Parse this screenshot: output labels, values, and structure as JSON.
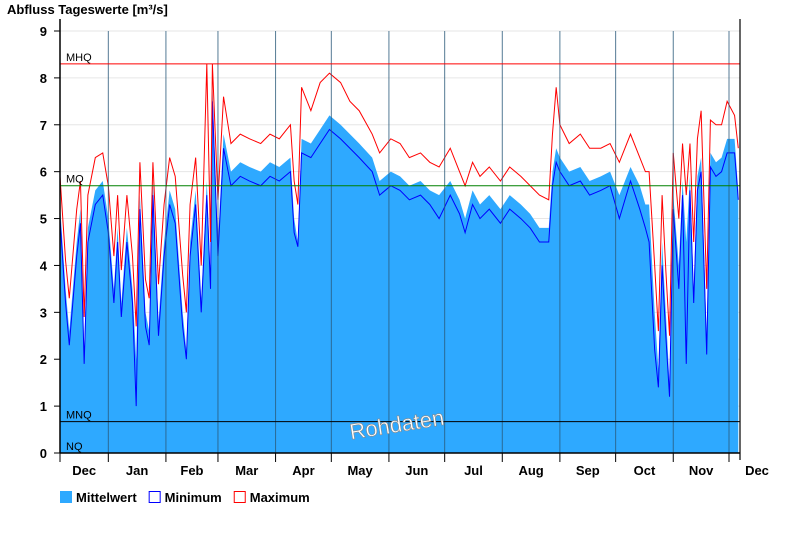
{
  "chart_data": {
    "type": "area",
    "title": "Abfluss Tageswerte [m³/s]",
    "ylabel": "Abfluss Tageswerte [m³/s]",
    "xlabel": "",
    "ylim": [
      0,
      9
    ],
    "yticks": [
      "0",
      "1",
      "2",
      "3",
      "4",
      "5",
      "6",
      "7",
      "8",
      "9"
    ],
    "xlim_days": [
      5,
      371
    ],
    "months": [
      {
        "label": "Dec",
        "start": 0
      },
      {
        "label": "Jan",
        "start": 31
      },
      {
        "label": "Feb",
        "start": 62
      },
      {
        "label": "Mar",
        "start": 90
      },
      {
        "label": "Apr",
        "start": 121
      },
      {
        "label": "May",
        "start": 151
      },
      {
        "label": "Jun",
        "start": 182
      },
      {
        "label": "Jul",
        "start": 212
      },
      {
        "label": "Aug",
        "start": 243
      },
      {
        "label": "Sep",
        "start": 274
      },
      {
        "label": "Oct",
        "start": 304
      },
      {
        "label": "Nov",
        "start": 335
      },
      {
        "label": "Dec",
        "start": 365
      }
    ],
    "reference_lines": [
      {
        "label": "MHQ",
        "value": 8.3,
        "color": "#ff0000"
      },
      {
        "label": "MQ",
        "value": 5.7,
        "color": "#008000"
      },
      {
        "label": "MNQ",
        "value": 0.67,
        "color": "#000000"
      },
      {
        "label": "NQ",
        "value": 0.0,
        "color": "#000000"
      }
    ],
    "watermark": "Rohdaten",
    "days": [
      5,
      8,
      10,
      14,
      16,
      18,
      20,
      24,
      28,
      31,
      34,
      36,
      38,
      41,
      44,
      46,
      48,
      51,
      53,
      55,
      58,
      61,
      64,
      67,
      71,
      73,
      75,
      78,
      81,
      84,
      86,
      87,
      90,
      93,
      97,
      102,
      107,
      113,
      118,
      123,
      129,
      131,
      133,
      135,
      140,
      145,
      150,
      156,
      161,
      166,
      173,
      177,
      183,
      188,
      193,
      199,
      204,
      209,
      215,
      220,
      223,
      227,
      231,
      236,
      242,
      247,
      253,
      258,
      263,
      268,
      270,
      272,
      274,
      279,
      285,
      290,
      296,
      301,
      306,
      312,
      317,
      320,
      322,
      325,
      327,
      329,
      331,
      333,
      335,
      338,
      340,
      342,
      344,
      346,
      348,
      350,
      353,
      355,
      358,
      361,
      364,
      368,
      370
    ],
    "series": [
      {
        "name": "Mittelwert",
        "color": "#2ea9ff",
        "values": [
          5.3,
          3.5,
          2.6,
          4.5,
          5.2,
          2.2,
          4.8,
          5.6,
          5.8,
          5.0,
          3.5,
          4.8,
          3.2,
          4.8,
          3.5,
          2.0,
          5.5,
          3.0,
          2.6,
          5.8,
          2.8,
          4.5,
          5.6,
          5.2,
          3.0,
          2.2,
          4.5,
          5.6,
          3.3,
          5.8,
          3.8,
          7.8,
          4.5,
          6.8,
          6.0,
          6.2,
          6.1,
          6.0,
          6.2,
          6.1,
          6.3,
          5.0,
          4.5,
          6.7,
          6.6,
          6.9,
          7.2,
          7.0,
          6.8,
          6.6,
          6.3,
          5.8,
          6.0,
          5.9,
          5.7,
          5.8,
          5.6,
          5.5,
          5.8,
          5.4,
          5.0,
          5.6,
          5.3,
          5.5,
          5.2,
          5.5,
          5.3,
          5.1,
          4.8,
          4.8,
          6.0,
          6.5,
          6.3,
          6.0,
          6.1,
          5.8,
          5.9,
          6.0,
          5.5,
          6.1,
          5.7,
          5.3,
          5.3,
          3.0,
          1.8,
          4.5,
          3.0,
          1.5,
          5.5,
          4.0,
          5.8,
          4.5,
          5.9,
          3.5,
          5.9,
          6.3,
          2.5,
          6.4,
          6.2,
          6.3,
          6.7,
          6.7,
          5.6
        ]
      },
      {
        "name": "Minimum",
        "color": "#0000ff",
        "values": [
          5.0,
          3.2,
          2.3,
          4.2,
          4.9,
          1.9,
          4.5,
          5.3,
          5.5,
          4.7,
          3.2,
          4.5,
          2.9,
          4.5,
          3.2,
          1.0,
          5.2,
          2.7,
          2.3,
          5.5,
          2.5,
          4.2,
          5.3,
          4.9,
          2.7,
          2.0,
          4.2,
          5.3,
          3.0,
          5.5,
          3.5,
          7.5,
          4.2,
          6.5,
          5.7,
          5.9,
          5.8,
          5.7,
          5.9,
          5.8,
          6.0,
          4.7,
          4.4,
          6.4,
          6.3,
          6.6,
          6.9,
          6.7,
          6.5,
          6.3,
          6.0,
          5.5,
          5.7,
          5.6,
          5.4,
          5.5,
          5.3,
          5.0,
          5.5,
          5.1,
          4.7,
          5.3,
          5.0,
          5.2,
          4.9,
          5.2,
          5.0,
          4.8,
          4.5,
          4.5,
          5.7,
          6.2,
          6.0,
          5.7,
          5.8,
          5.5,
          5.6,
          5.7,
          5.0,
          5.8,
          5.2,
          4.8,
          4.5,
          2.2,
          1.4,
          4.0,
          2.5,
          1.2,
          5.2,
          3.5,
          5.5,
          1.9,
          5.6,
          3.2,
          5.6,
          6.0,
          2.1,
          6.1,
          5.9,
          6.0,
          6.4,
          6.4,
          5.4
        ]
      },
      {
        "name": "Maximum",
        "color": "#ff0000",
        "values": [
          5.9,
          4.1,
          3.3,
          5.2,
          5.8,
          2.9,
          5.5,
          6.3,
          6.4,
          5.7,
          4.2,
          5.5,
          3.9,
          5.5,
          4.2,
          2.7,
          6.2,
          3.7,
          3.3,
          6.2,
          3.6,
          5.3,
          6.3,
          5.9,
          3.8,
          3.0,
          5.3,
          6.3,
          4.0,
          8.3,
          4.5,
          8.3,
          5.4,
          7.6,
          6.6,
          6.8,
          6.7,
          6.6,
          6.8,
          6.7,
          7.0,
          5.8,
          5.3,
          7.8,
          7.3,
          7.9,
          8.1,
          7.9,
          7.5,
          7.3,
          6.8,
          6.4,
          6.7,
          6.6,
          6.3,
          6.4,
          6.2,
          6.1,
          6.5,
          6.0,
          5.7,
          6.2,
          5.9,
          6.1,
          5.8,
          6.1,
          5.9,
          5.7,
          5.5,
          5.4,
          6.8,
          7.8,
          7.0,
          6.6,
          6.8,
          6.5,
          6.5,
          6.6,
          6.2,
          6.8,
          6.3,
          6.0,
          6.0,
          4.0,
          2.6,
          5.5,
          3.9,
          2.5,
          6.4,
          5.0,
          6.6,
          5.5,
          6.6,
          4.5,
          6.7,
          7.3,
          3.5,
          7.1,
          7.0,
          7.0,
          7.5,
          7.2,
          6.5
        ]
      }
    ],
    "legend": {
      "placement": "bottom-left",
      "items": [
        "Mittelwert",
        "Minimum",
        "Maximum"
      ]
    }
  }
}
